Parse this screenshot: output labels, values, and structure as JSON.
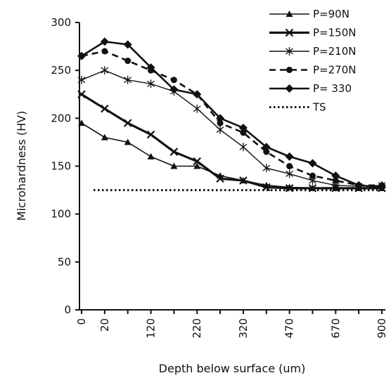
{
  "chart_data": {
    "type": "line",
    "title": "",
    "xlabel": "Depth below surface (um)",
    "ylabel": "Microhardness (HV)",
    "ylim": [
      0,
      300
    ],
    "yticks": [
      "0",
      "50",
      "100",
      "150",
      "200",
      "250",
      "300"
    ],
    "x": [
      "0",
      "20",
      "",
      "120",
      "",
      "220",
      "",
      "320",
      "",
      "470",
      "",
      "670",
      "",
      "900"
    ],
    "xtick_labels": [
      "0",
      "20",
      "120",
      "220",
      "320",
      "470",
      "670",
      "900"
    ],
    "grid": false,
    "legend_position": "top-right",
    "series": [
      {
        "name": "P=90N",
        "style": "thin-triangle",
        "values": [
          195,
          180,
          175,
          160,
          150,
          150,
          140,
          135,
          130,
          128,
          127,
          127,
          127,
          127
        ]
      },
      {
        "name": "P=150N",
        "style": "thick-x",
        "values": [
          225,
          210,
          195,
          183,
          165,
          155,
          137,
          135,
          128,
          127,
          127,
          127,
          127,
          127
        ]
      },
      {
        "name": "P=210N",
        "style": "thin-star",
        "values": [
          240,
          250,
          240,
          236,
          228,
          210,
          188,
          170,
          148,
          142,
          135,
          130,
          129,
          130
        ]
      },
      {
        "name": "P=270N",
        "style": "dashed-circle",
        "values": [
          265,
          270,
          260,
          250,
          240,
          225,
          195,
          185,
          165,
          150,
          140,
          135,
          130,
          130
        ]
      },
      {
        "name": "P= 330",
        "style": "thick-diamond",
        "values": [
          265,
          280,
          277,
          253,
          230,
          225,
          200,
          190,
          170,
          160,
          153,
          140,
          130,
          128
        ]
      },
      {
        "name": "TS",
        "style": "dotted",
        "values": [
          125,
          125,
          125,
          125,
          125,
          125,
          125,
          125,
          125,
          125,
          125,
          125,
          125,
          125
        ]
      }
    ]
  }
}
